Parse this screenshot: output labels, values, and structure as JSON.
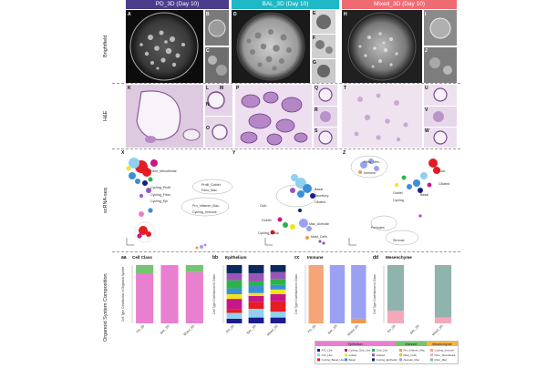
{
  "headers": [
    {
      "label": "PD_3D (Day 10)",
      "color": "#4b3c8c"
    },
    {
      "label": "BAL_3D (Day 10)",
      "color": "#1fb8c6"
    },
    {
      "label": "Mixed_3D (Day 10)",
      "color": "#ef6b72"
    }
  ],
  "row_labels": {
    "brightfield": "Brightfield",
    "he": "H&E",
    "scrna": "scRNA-seq",
    "composition": "Organoid System Composition"
  },
  "panel_letters": {
    "bf": [
      "A",
      "B",
      "C",
      "D",
      "E",
      "F",
      "G",
      "H",
      "I",
      "J"
    ],
    "he": [
      "K",
      "L",
      "M",
      "N",
      "O",
      "P",
      "Q",
      "R",
      "S",
      "T",
      "U",
      "V",
      "W"
    ],
    "umap": [
      "X",
      "Y",
      "Z"
    ],
    "comp": [
      "aa",
      "bb",
      "cc",
      "dd"
    ]
  },
  "umap_labels": {
    "x": [
      "Prolif_Goblet",
      "Fibro_Mac",
      "Fibro_Mesothelial",
      "Cycling_Immune",
      "Pro_Inflamm_Mac",
      "Cycling_Prolif",
      "Cycling_Fibro",
      "Cycling_Epi"
    ],
    "y": [
      "Basal",
      "Secretory",
      "Club",
      "Ciliated",
      "Goblet",
      "Mac_Alveolar",
      "Cycling_Basal",
      "Mast_Cells"
    ],
    "z": [
      "Fibro_Mes",
      "Immune",
      "Club",
      "Goblet",
      "Basal",
      "Ciliated",
      "Cycling",
      "Pericytes",
      "Stromal"
    ]
  },
  "chart_data": [
    {
      "panel": "aa",
      "title": "Cell Class",
      "type": "bar",
      "stacked": true,
      "ylabel": "Cell Type Contribution to Organoid System",
      "categories": [
        "PD_3D",
        "BAL_3D",
        "Mixed_3D"
      ],
      "series": [
        {
          "color": "#e87fcf",
          "values": [
            0.86,
            0.99,
            0.88
          ]
        },
        {
          "color": "#73c56f",
          "values": [
            0.14,
            0.01,
            0.12
          ]
        },
        {
          "color": "#f5b443",
          "values": [
            0.0,
            0.0,
            0.0
          ]
        }
      ]
    },
    {
      "panel": "bb",
      "title": "Epithelium",
      "type": "bar",
      "stacked": true,
      "ylabel": "Cell Type Contribution to Class",
      "categories": [
        "PD_3D",
        "BAL_3D",
        "Mixed_3D"
      ],
      "series": [
        {
          "color": "#1b1b8f",
          "values": [
            0.08,
            0.1,
            0.1
          ]
        },
        {
          "color": "#8fd1ef",
          "values": [
            0.1,
            0.15,
            0.1
          ]
        },
        {
          "color": "#e51c23",
          "values": [
            0.06,
            0.12,
            0.18
          ]
        },
        {
          "color": "#c7158a",
          "values": [
            0.18,
            0.1,
            0.12
          ]
        },
        {
          "color": "#f2e51c",
          "values": [
            0.08,
            0.05,
            0.08
          ]
        },
        {
          "color": "#3a8fd6",
          "values": [
            0.1,
            0.12,
            0.08
          ]
        },
        {
          "color": "#2bb34a",
          "values": [
            0.14,
            0.08,
            0.1
          ]
        },
        {
          "color": "#9b55b9",
          "values": [
            0.12,
            0.14,
            0.12
          ]
        },
        {
          "color": "#0a2a5e",
          "values": [
            0.14,
            0.14,
            0.12
          ]
        }
      ]
    },
    {
      "panel": "cc",
      "title": "Immune",
      "type": "bar",
      "stacked": true,
      "ylabel": "Cell Type Contribution to Class",
      "categories": [
        "PD_3D",
        "BAL_3D",
        "Mixed_3D"
      ],
      "series": [
        {
          "color": "#ef9a4c",
          "values": [
            0.02,
            0.0,
            0.08
          ]
        },
        {
          "color": "#f0c400",
          "values": [
            0.0,
            0.0,
            0.0
          ]
        },
        {
          "color": "#9aa0f2",
          "values": [
            0.0,
            1.0,
            0.92
          ]
        },
        {
          "color": "#f6a57a",
          "values": [
            0.98,
            0.0,
            0.0
          ]
        }
      ]
    },
    {
      "panel": "dd",
      "title": "Mesenchyme",
      "type": "bar",
      "stacked": true,
      "ylabel": "Cell Type Contribution to Class",
      "categories": [
        "PD_3D",
        "BAL_3D",
        "Mixed_3D"
      ],
      "series": [
        {
          "color": "#f5a9b8",
          "values": [
            0.22,
            0.0,
            0.1
          ]
        },
        {
          "color": "#8fb4ad",
          "values": [
            0.78,
            0.0,
            0.9
          ]
        }
      ]
    }
  ],
  "legend": {
    "groups": [
      {
        "label": "Epithelium",
        "color": "#e87fcf"
      },
      {
        "label": "Immune",
        "color": "#73c56f"
      },
      {
        "label": "Mesenchyme",
        "color": "#f5b443"
      }
    ],
    "items": [
      {
        "label": "AT1_Like",
        "color": "#1b1b8f"
      },
      {
        "label": "AT2_Like",
        "color": "#8fd1ef"
      },
      {
        "label": "Cycling_Basal_Like",
        "color": "#e51c23"
      },
      {
        "label": "Cycling_Club_Like",
        "color": "#c7158a"
      },
      {
        "label": "Goblet",
        "color": "#f2e51c"
      },
      {
        "label": "Basal",
        "color": "#3a8fd6"
      },
      {
        "label": "Club_Like",
        "color": "#2bb34a"
      },
      {
        "label": "Ciliated",
        "color": "#9b55b9"
      },
      {
        "label": "Cycling_Epithelial",
        "color": "#0a2a5e"
      },
      {
        "label": "Pro_Inflamm_Mac",
        "color": "#ef9a4c"
      },
      {
        "label": "Mast_Cells",
        "color": "#f0c400"
      },
      {
        "label": "Alveolar_Mac",
        "color": "#9aa0f2"
      },
      {
        "label": "Cycling_Immune",
        "color": "#f6a57a"
      },
      {
        "label": "Fibro_Mesothelial",
        "color": "#f5a9b8"
      },
      {
        "label": "Fibro_Mac",
        "color": "#8fb4ad"
      }
    ]
  }
}
